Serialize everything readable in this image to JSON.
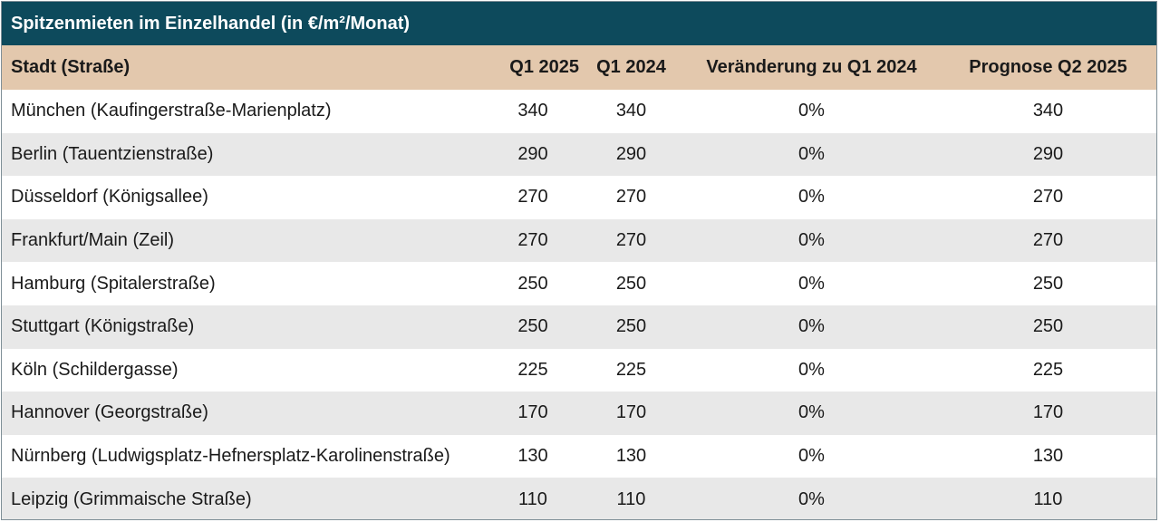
{
  "title": "Spitzenmieten im Einzelhandel (in €/m²/Monat)",
  "chart_data": {
    "type": "table",
    "columns": [
      "Stadt (Straße)",
      "Q1 2025",
      "Q1 2024",
      "Veränderung zu Q1 2024",
      "Prognose Q2 2025"
    ],
    "rows": [
      [
        "München (Kaufingerstraße-Marienplatz)",
        "340",
        "340",
        "0%",
        "340"
      ],
      [
        "Berlin (Tauentzienstraße)",
        "290",
        "290",
        "0%",
        "290"
      ],
      [
        "Düsseldorf (Königsallee)",
        "270",
        "270",
        "0%",
        "270"
      ],
      [
        "Frankfurt/Main (Zeil)",
        "270",
        "270",
        "0%",
        "270"
      ],
      [
        "Hamburg (Spitalerstraße)",
        "250",
        "250",
        "0%",
        "250"
      ],
      [
        "Stuttgart (Königstraße)",
        "250",
        "250",
        "0%",
        "250"
      ],
      [
        "Köln (Schildergasse)",
        "225",
        "225",
        "0%",
        "225"
      ],
      [
        "Hannover (Georgstraße)",
        "170",
        "170",
        "0%",
        "170"
      ],
      [
        "Nürnberg (Ludwigsplatz-Hefnersplatz-Karolinenstraße)",
        "130",
        "130",
        "0%",
        "130"
      ],
      [
        "Leipzig (Grimmaische Straße)",
        "110",
        "110",
        "0%",
        "110"
      ]
    ]
  },
  "colors": {
    "title_bar": "#0d4a5c",
    "header_row": "#e3c8ad",
    "stripe_row": "#e8e8e8"
  }
}
